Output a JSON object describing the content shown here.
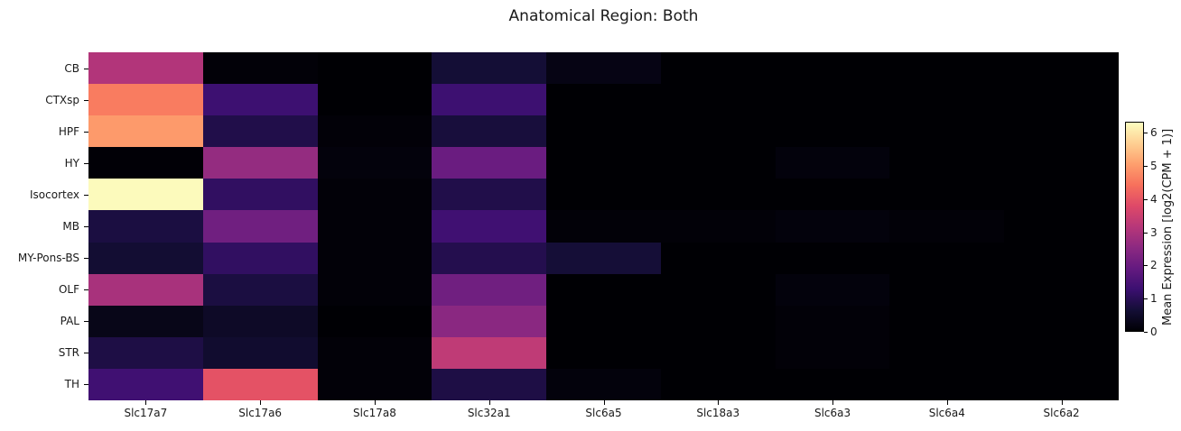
{
  "title": "Anatomical Region: Both",
  "chart_data": {
    "type": "heatmap",
    "title": "Anatomical Region: Both",
    "colormap": "magma",
    "rows": [
      "CB",
      "CTXsp",
      "HPF",
      "HY",
      "Isocortex",
      "MB",
      "MY-Pons-BS",
      "OLF",
      "PAL",
      "STR",
      "TH"
    ],
    "columns": [
      "Slc17a7",
      "Slc17a6",
      "Slc17a8",
      "Slc32a1",
      "Slc6a5",
      "Slc18a3",
      "Slc6a3",
      "Slc6a4",
      "Slc6a2"
    ],
    "values": [
      [
        3.1,
        0.05,
        0.0,
        0.63,
        0.2,
        0.0,
        0.0,
        0.0,
        0.0
      ],
      [
        4.6,
        1.3,
        0.0,
        1.3,
        0.0,
        0.0,
        0.0,
        0.0,
        0.0
      ],
      [
        5.0,
        0.85,
        0.05,
        0.7,
        0.0,
        0.0,
        0.0,
        0.0,
        0.0
      ],
      [
        0.02,
        2.65,
        0.1,
        2.0,
        0.0,
        0.0,
        0.1,
        0.0,
        0.0
      ],
      [
        6.3,
        1.1,
        0.05,
        0.85,
        0.0,
        0.0,
        0.0,
        0.0,
        0.0
      ],
      [
        0.75,
        2.1,
        0.05,
        1.35,
        0.05,
        0.05,
        0.1,
        0.05,
        0.0
      ],
      [
        0.6,
        1.1,
        0.05,
        0.9,
        0.65,
        0.0,
        0.0,
        0.0,
        0.0
      ],
      [
        2.95,
        0.75,
        0.05,
        2.1,
        0.0,
        0.0,
        0.1,
        0.0,
        0.0
      ],
      [
        0.25,
        0.45,
        0.0,
        2.5,
        0.0,
        0.0,
        0.05,
        0.0,
        0.0
      ],
      [
        0.8,
        0.55,
        0.05,
        3.3,
        0.0,
        0.0,
        0.05,
        0.0,
        0.0
      ],
      [
        1.35,
        3.95,
        0.05,
        0.8,
        0.1,
        0.0,
        0.0,
        0.0,
        0.0
      ]
    ],
    "vmin": 0,
    "vmax": 6.34,
    "grid": false,
    "colorbar": {
      "label": "Mean Expression [log2(CPM + 1)]",
      "ticks": [
        0,
        1,
        2,
        3,
        4,
        5,
        6
      ],
      "position": "right"
    },
    "colors": {
      "magma_low": "#000004",
      "magma_mid": "#b73779",
      "magma_high": "#fcfdbf",
      "text": "#1a1a1a",
      "background": "#ffffff"
    }
  }
}
